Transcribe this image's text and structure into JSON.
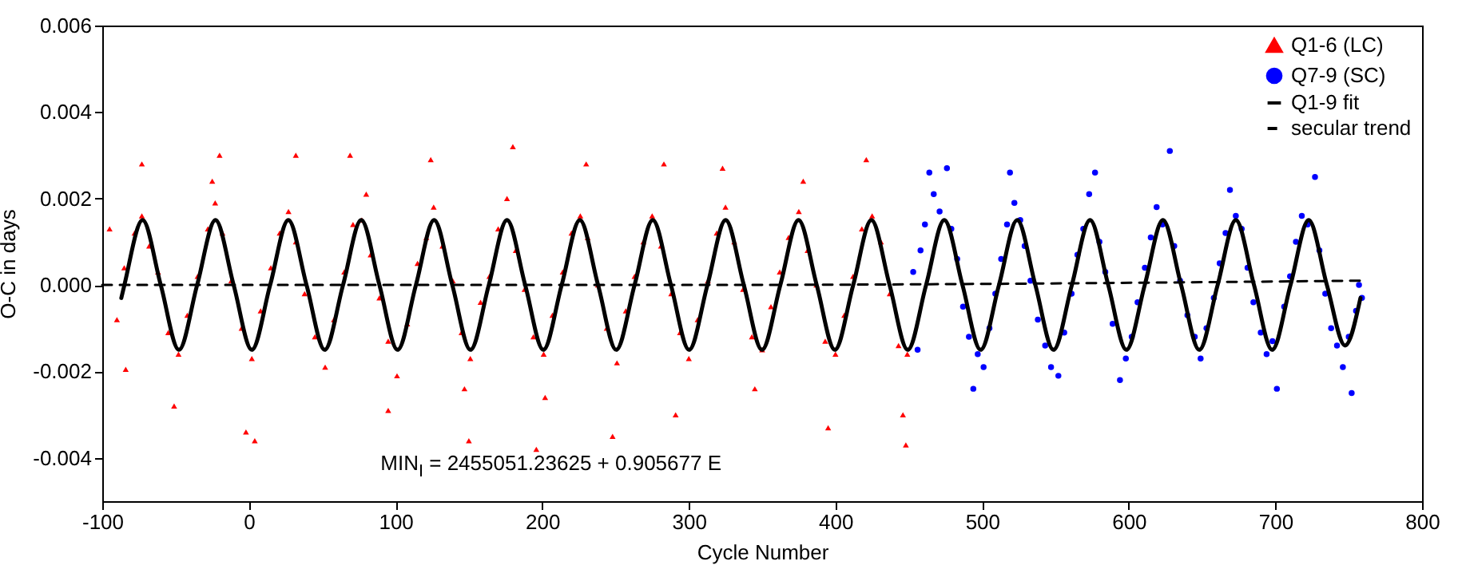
{
  "chart_data": {
    "type": "scatter",
    "xlabel": "Cycle Number",
    "ylabel": "O-C in days",
    "xlim": [
      -100,
      800
    ],
    "xticks": [
      -100,
      0,
      100,
      200,
      300,
      400,
      500,
      600,
      700,
      800
    ],
    "ylim": [
      -0.005,
      0.006
    ],
    "yticks": [
      {
        "value": -0.004,
        "label": "-0.004"
      },
      {
        "value": -0.002,
        "label": "-0.002"
      },
      {
        "value": 0,
        "label": "0.000"
      },
      {
        "value": 0.002,
        "label": "0.002"
      },
      {
        "value": 0.004,
        "label": "0.004"
      },
      {
        "value": 0.006,
        "label": "0.006"
      }
    ],
    "legend": "top right",
    "annotations": [
      "MIN$_{I}$ = 2455051.23625 + 0.905677 E"
    ],
    "series": [
      {
        "name": "Q1-6 (LC)",
        "marker": "triangle",
        "color": "#ff0000",
        "x": [
          -95,
          -90,
          -85,
          -78,
          -73,
          -68,
          -62,
          -55,
          -48,
          -42,
          -84,
          -73,
          -51,
          -35,
          -28,
          -23,
          -18,
          -12,
          -5,
          2,
          8,
          -20,
          -2,
          4,
          -25,
          15,
          21,
          27,
          32,
          38,
          45,
          52,
          58,
          32,
          65,
          71,
          77,
          83,
          89,
          95,
          101,
          108,
          69,
          95,
          80,
          115,
          121,
          126,
          132,
          139,
          145,
          151,
          158,
          124,
          150,
          147,
          164,
          170,
          176,
          182,
          188,
          194,
          201,
          207,
          180,
          196,
          202,
          214,
          220,
          226,
          231,
          238,
          244,
          251,
          257,
          230,
          248,
          263,
          269,
          275,
          281,
          288,
          294,
          300,
          306,
          283,
          291,
          313,
          319,
          325,
          331,
          337,
          343,
          350,
          356,
          323,
          345,
          362,
          368,
          375,
          381,
          387,
          393,
          400,
          406,
          395,
          378,
          412,
          418,
          425,
          431,
          437,
          443,
          449,
          421,
          448,
          446
        ],
        "values": [
          0.0013,
          -0.0008,
          0.0004,
          0.0012,
          0.0016,
          0.0009,
          0.0003,
          -0.0011,
          -0.0016,
          -0.0007,
          -0.00195,
          0.0028,
          -0.0028,
          0.0002,
          0.0013,
          0.0019,
          0.0012,
          0.0001,
          -0.001,
          -0.0017,
          -0.0006,
          0.003,
          -0.0034,
          -0.0036,
          0.0024,
          0.0004,
          0.0012,
          0.0017,
          0.001,
          -0.0002,
          -0.0012,
          -0.0019,
          -0.0008,
          0.003,
          0.0003,
          0.0014,
          0.0015,
          0.0007,
          -0.0003,
          -0.0013,
          -0.0021,
          -0.0009,
          0.003,
          -0.0029,
          0.0021,
          0.0005,
          0.0011,
          0.0018,
          0.0009,
          0.0001,
          -0.0011,
          -0.0017,
          -0.0004,
          0.0029,
          -0.0036,
          -0.0024,
          0.0002,
          0.0013,
          0.002,
          0.0008,
          -0.0001,
          -0.0012,
          -0.0016,
          -0.0007,
          0.0032,
          -0.0038,
          -0.0026,
          0.0003,
          0.0012,
          0.0016,
          0.0011,
          0,
          -0.001,
          -0.0018,
          -0.0006,
          0.0028,
          -0.0035,
          0.0002,
          0.001,
          0.0016,
          0.0009,
          -0.0002,
          -0.0011,
          -0.0017,
          -0.0008,
          0.0028,
          -0.003,
          0.0001,
          0.0012,
          0.0018,
          0.001,
          -0.0001,
          -0.0012,
          -0.0015,
          -0.0005,
          0.0027,
          -0.0024,
          0.0003,
          0.0011,
          0.0017,
          0.0008,
          0,
          -0.0013,
          -0.0016,
          -0.0007,
          -0.0033,
          0.0024,
          0.0002,
          0.0013,
          0.0016,
          0.001,
          -0.0002,
          -0.0014,
          -0.0016,
          0.0029,
          -0.0037,
          -0.003
        ]
      },
      {
        "name": "Q7-9 (SC)",
        "marker": "circle",
        "color": "#0000ff",
        "x": [
          453,
          456,
          458,
          461,
          464,
          467,
          471,
          476,
          479,
          483,
          487,
          491,
          494,
          497,
          501,
          505,
          509,
          513,
          517,
          519,
          522,
          526,
          529,
          533,
          538,
          543,
          547,
          552,
          556,
          561,
          565,
          569,
          573,
          577,
          580,
          584,
          589,
          594,
          598,
          602,
          606,
          611,
          615,
          619,
          623,
          628,
          631,
          635,
          640,
          645,
          649,
          653,
          658,
          662,
          666,
          669,
          673,
          677,
          681,
          685,
          690,
          694,
          698,
          701,
          706,
          710,
          714,
          718,
          722,
          727,
          730,
          734,
          738,
          742,
          746,
          750,
          752,
          755,
          757,
          759
        ],
        "values": [
          0.0003,
          -0.0015,
          0.0008,
          0.0014,
          0.0026,
          0.0021,
          0.0017,
          0.0027,
          0.0013,
          0.0006,
          -0.0005,
          -0.0012,
          -0.0024,
          -0.0016,
          -0.0019,
          -0.001,
          -0.0002,
          0.0006,
          0.0014,
          0.0026,
          0.0019,
          0.0015,
          0.0009,
          0.0001,
          -0.0008,
          -0.0014,
          -0.0019,
          -0.0021,
          -0.0011,
          -0.0002,
          0.0007,
          0.0013,
          0.0021,
          0.0026,
          0.001,
          0.0003,
          -0.0009,
          -0.0022,
          -0.0017,
          -0.0012,
          -0.0004,
          0.0004,
          0.0011,
          0.0018,
          0.0014,
          0.0031,
          0.0009,
          0.0001,
          -0.0007,
          -0.0012,
          -0.0017,
          -0.001,
          -0.0003,
          0.0005,
          0.0012,
          0.0022,
          0.0016,
          0.0013,
          0.0004,
          -0.0004,
          -0.0011,
          -0.0016,
          -0.0013,
          -0.0024,
          -0.0005,
          0.0002,
          0.001,
          0.0016,
          0.0014,
          0.0025,
          0.0008,
          -0.0002,
          -0.001,
          -0.0014,
          -0.0019,
          -0.0012,
          -0.0025,
          -0.0006,
          0,
          -0.0003
        ]
      },
      {
        "name": "Q1-9 fit",
        "type": "line",
        "line_style": "solid",
        "color": "#000000",
        "x": [
          -87,
          -84.9,
          -72.5,
          -60.1,
          -47.7,
          -35.3,
          -22.8,
          -10.4,
          2,
          14.5,
          26.9,
          39.3,
          51.7,
          64.2,
          76.6,
          89,
          101.4,
          113.9,
          126.3,
          138.7,
          151.1,
          163.6,
          176,
          188.4,
          200.8,
          213.3,
          225.7,
          238.1,
          250.5,
          263,
          275.4,
          287.8,
          300.2,
          312.7,
          325.1,
          337.5,
          349.9,
          362.4,
          374.8,
          387.2,
          399.6,
          412.1,
          424.5,
          436.9,
          449.3,
          461.8,
          474.2,
          486.6,
          499,
          511.5,
          523.9,
          536.3,
          548.7,
          561.2,
          573.6,
          586,
          598.4,
          610.9,
          623.3,
          635.7,
          648.1,
          660.6,
          673,
          685.4,
          697.8,
          710.3,
          722.7,
          735.1,
          747.5,
          758
        ],
        "values": [
          -0.0003,
          0,
          0.0015,
          0,
          -0.0015,
          0,
          0.0015,
          0,
          -0.0015,
          0,
          0.0015,
          0,
          -0.0015,
          0,
          0.0015,
          0,
          -0.0015,
          0,
          0.0015,
          0,
          -0.0015,
          0,
          0.0015,
          0,
          -0.0015,
          0,
          0.0015,
          0,
          -0.0015,
          0,
          0.0015,
          0,
          -0.0015,
          0,
          0.0015,
          0,
          -0.0015,
          0,
          0.0015,
          0,
          -0.0015,
          0,
          0.0015,
          0,
          -0.0015,
          0,
          0.0015,
          0,
          -0.0015,
          0,
          0.0015,
          0,
          -0.0015,
          0,
          0.0015,
          0,
          -0.0015,
          0,
          0.0015,
          0,
          -0.0015,
          0,
          0.0015,
          0,
          -0.0015,
          0,
          0.0015,
          0,
          -0.0014,
          -0.0003
        ]
      },
      {
        "name": "secular trend",
        "type": "line",
        "line_style": "dashed",
        "color": "#000000",
        "x": [
          -100,
          300,
          760
        ],
        "values": [
          0,
          0,
          0.0001
        ]
      }
    ]
  }
}
